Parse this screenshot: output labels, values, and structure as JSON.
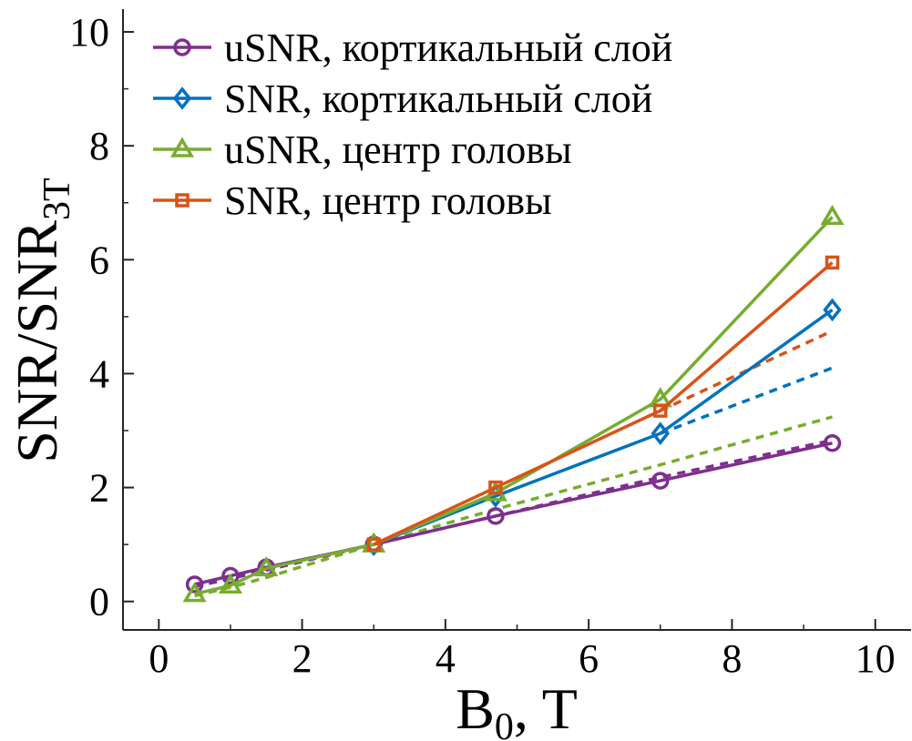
{
  "chart_data": {
    "type": "line",
    "xlabel": {
      "main": "B",
      "sub": "0",
      "tail": ", T"
    },
    "ylabel": {
      "main": "SNR/SNR",
      "sub": "3T"
    },
    "xlim": [
      -0.5,
      10.5
    ],
    "ylim": [
      -0.5,
      10.4
    ],
    "xticks": [
      0,
      2,
      4,
      6,
      8,
      10
    ],
    "yticks": [
      0,
      2,
      4,
      6,
      8,
      10
    ],
    "minor_xticks": [
      1,
      3,
      5,
      7,
      9
    ],
    "minor_yticks": [
      1,
      3,
      5,
      7,
      9
    ],
    "grid": false,
    "legend_position": "top-left",
    "series": [
      {
        "name": "uSNR, кортикальный слой",
        "color": "#7E2F8E",
        "marker": "circle",
        "x": [
          0.5,
          1.0,
          1.5,
          3.0,
          4.7,
          7.0,
          9.4
        ],
        "y": [
          0.3,
          0.45,
          0.6,
          1.0,
          1.5,
          2.12,
          2.78
        ],
        "fit_x": [
          0.5,
          1.0,
          1.5,
          3.0,
          4.7,
          7.0,
          9.4
        ],
        "fit_y": [
          0.26,
          0.4,
          0.55,
          1.0,
          1.5,
          2.18,
          2.83
        ]
      },
      {
        "name": "SNR, кортикальный слой",
        "color": "#0072BD",
        "marker": "diamond",
        "x": [
          3.0,
          4.7,
          7.0,
          9.4
        ],
        "y": [
          1.0,
          1.85,
          2.95,
          5.12
        ],
        "fit_x": [
          7.0,
          9.4
        ],
        "fit_y": [
          2.95,
          4.1
        ]
      },
      {
        "name": "uSNR, центр головы",
        "color": "#77AC30",
        "marker": "triangle",
        "x": [
          0.5,
          1.0,
          1.5,
          3.0,
          4.7,
          7.0,
          9.4
        ],
        "y": [
          0.13,
          0.28,
          0.58,
          1.0,
          1.9,
          3.55,
          6.75
        ],
        "fit_x": [
          0.5,
          1.0,
          1.5,
          3.0,
          4.7,
          7.0,
          9.4
        ],
        "fit_y": [
          0.1,
          0.25,
          0.42,
          1.0,
          1.62,
          2.4,
          3.24
        ]
      },
      {
        "name": "SNR, центр головы",
        "color": "#D95319",
        "marker": "square",
        "x": [
          3.0,
          4.7,
          7.0,
          9.4
        ],
        "y": [
          1.0,
          2.0,
          3.35,
          5.95
        ],
        "fit_x": [
          7.0,
          9.4
        ],
        "fit_y": [
          3.35,
          4.75
        ]
      }
    ]
  }
}
